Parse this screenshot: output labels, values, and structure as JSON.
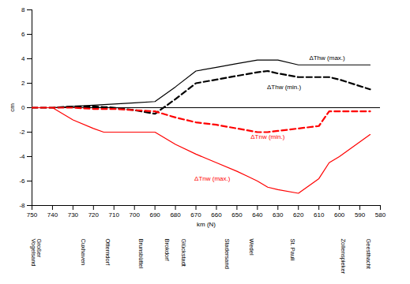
{
  "chart_data": {
    "type": "line",
    "x_label": "km (N)",
    "y_label": "cm",
    "x": [
      750,
      740,
      730,
      720,
      715,
      710,
      700,
      690,
      680,
      670,
      660,
      650,
      645,
      640,
      635,
      630,
      620,
      610,
      605,
      600,
      585
    ],
    "series": [
      {
        "name": "ΔThw (max.)",
        "color": "#000000",
        "line_style": "solid",
        "values": [
          0,
          0,
          0.1,
          0.2,
          0.25,
          0.3,
          0.4,
          0.5,
          1.7,
          3.0,
          3.3,
          3.6,
          3.75,
          3.9,
          3.9,
          3.9,
          3.5,
          3.5,
          3.5,
          3.5,
          3.5
        ]
      },
      {
        "name": "ΔThw (min.)",
        "color": "#000000",
        "line_style": "dashed",
        "values": [
          0,
          0,
          0.1,
          0.1,
          0.05,
          0,
          -0.2,
          -0.5,
          0.7,
          2.0,
          2.3,
          2.6,
          2.75,
          2.9,
          3.0,
          2.8,
          2.5,
          2.5,
          2.5,
          2.3,
          1.5
        ]
      },
      {
        "name": "ΔTnw (min.)",
        "color": "#ff0000",
        "line_style": "dashed",
        "values": [
          0,
          0,
          0,
          -0.1,
          -0.1,
          -0.1,
          -0.2,
          -0.3,
          -0.8,
          -1.2,
          -1.4,
          -1.7,
          -1.85,
          -2.0,
          -2.0,
          -1.9,
          -1.7,
          -1.5,
          -0.3,
          -0.3,
          -0.3
        ]
      },
      {
        "name": "ΔTnw (max.)",
        "color": "#ff0000",
        "line_style": "solid",
        "values": [
          0,
          0,
          -1.0,
          -1.7,
          -2.0,
          -2.0,
          -2.0,
          -2.0,
          -3.0,
          -3.8,
          -4.5,
          -5.2,
          -5.6,
          -6.0,
          -6.5,
          -6.7,
          -7.0,
          -5.8,
          -4.5,
          -4.0,
          -2.2
        ]
      }
    ],
    "annotations": [
      {
        "text": "ΔThw (max.)",
        "x": 606,
        "y": 4.1,
        "color": "#000000"
      },
      {
        "text": "ΔThw (min.)",
        "x": 627,
        "y": 1.7,
        "color": "#000000"
      },
      {
        "text": "ΔTnw (min.)",
        "x": 635,
        "y": -2.4,
        "color": "#ff0000"
      },
      {
        "text": "ΔTnw (max.)",
        "x": 662,
        "y": -5.8,
        "color": "#ff0000"
      }
    ],
    "stations": [
      {
        "name": "Großer Vogelsand",
        "km": 748
      },
      {
        "name": "Cuxhaven",
        "km": 725
      },
      {
        "name": "Otterndorf",
        "km": 713
      },
      {
        "name": "Brunsbüttel",
        "km": 697
      },
      {
        "name": "Brokdorf",
        "km": 684
      },
      {
        "name": "Glückstadt",
        "km": 676
      },
      {
        "name": "Stadersand",
        "km": 655
      },
      {
        "name": "Wedel",
        "km": 643
      },
      {
        "name": "St. Pauli",
        "km": 623
      },
      {
        "name": "Zollenspieker",
        "km": 598
      },
      {
        "name": "Geesthacht",
        "km": 586
      }
    ],
    "xlim": [
      750,
      580
    ],
    "xticks": [
      750,
      740,
      730,
      720,
      710,
      700,
      690,
      680,
      670,
      660,
      650,
      640,
      630,
      620,
      610,
      600,
      590,
      580
    ],
    "ylim": [
      -8,
      8
    ],
    "yticks": [
      -8,
      -6,
      -4,
      -2,
      0,
      2,
      4,
      6,
      8
    ],
    "grid": false
  }
}
